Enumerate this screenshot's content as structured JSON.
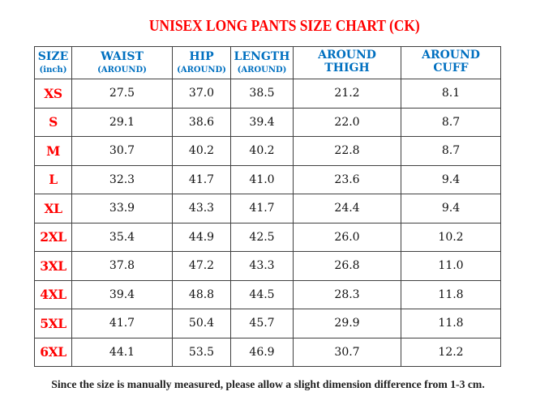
{
  "title": {
    "text": "UNISEX LONG PANTS SIZE CHART (CK)"
  },
  "footnote": {
    "text": "Since the size is manually measured, please allow a slight dimension difference from 1-3 cm."
  },
  "colors": {
    "title_red": "#ff0000",
    "header_blue": "#0070c0",
    "size_label_red": "#ff0000",
    "value_text": "#111111",
    "border": "#404040",
    "background": "#ffffff"
  },
  "table": {
    "columns": [
      {
        "label": "SIZE",
        "sublabel": "(inch)",
        "sub_small": true
      },
      {
        "label": "WAIST",
        "sublabel": "(AROUND)",
        "sub_small": true
      },
      {
        "label": "HIP",
        "sublabel": "(AROUND)",
        "sub_small": true
      },
      {
        "label": "LENGTH",
        "sublabel": "(AROUND)",
        "sub_small": true
      },
      {
        "label": "AROUND",
        "sublabel": "THIGH",
        "sub_small": false
      },
      {
        "label": "AROUND",
        "sublabel": "CUFF",
        "sub_small": false
      }
    ],
    "rows": [
      {
        "size": "XS",
        "values": [
          "27.5",
          "37.0",
          "38.5",
          "21.2",
          "8.1"
        ]
      },
      {
        "size": "S",
        "values": [
          "29.1",
          "38.6",
          "39.4",
          "22.0",
          "8.7"
        ]
      },
      {
        "size": "M",
        "values": [
          "30.7",
          "40.2",
          "40.2",
          "22.8",
          "8.7"
        ]
      },
      {
        "size": "L",
        "values": [
          "32.3",
          "41.7",
          "41.0",
          "23.6",
          "9.4"
        ]
      },
      {
        "size": "XL",
        "values": [
          "33.9",
          "43.3",
          "41.7",
          "24.4",
          "9.4"
        ]
      },
      {
        "size": "2XL",
        "values": [
          "35.4",
          "44.9",
          "42.5",
          "26.0",
          "10.2"
        ]
      },
      {
        "size": "3XL",
        "values": [
          "37.8",
          "47.2",
          "43.3",
          "26.8",
          "11.0"
        ]
      },
      {
        "size": "4XL",
        "values": [
          "39.4",
          "48.8",
          "44.5",
          "28.3",
          "11.8"
        ]
      },
      {
        "size": "5XL",
        "values": [
          "41.7",
          "50.4",
          "45.7",
          "29.9",
          "11.8"
        ]
      },
      {
        "size": "6XL",
        "values": [
          "44.1",
          "53.5",
          "46.9",
          "30.7",
          "12.2"
        ]
      }
    ]
  },
  "chart_data": {
    "type": "table",
    "title": "UNISEX LONG PANTS SIZE CHART (CK)",
    "unit": "inch",
    "columns": [
      "SIZE (inch)",
      "WAIST (AROUND)",
      "HIP (AROUND)",
      "LENGTH (AROUND)",
      "AROUND THIGH",
      "AROUND CUFF"
    ],
    "rows": [
      [
        "XS",
        27.5,
        37.0,
        38.5,
        21.2,
        8.1
      ],
      [
        "S",
        29.1,
        38.6,
        39.4,
        22.0,
        8.7
      ],
      [
        "M",
        30.7,
        40.2,
        40.2,
        22.8,
        8.7
      ],
      [
        "L",
        32.3,
        41.7,
        41.0,
        23.6,
        9.4
      ],
      [
        "XL",
        33.9,
        43.3,
        41.7,
        24.4,
        9.4
      ],
      [
        "2XL",
        35.4,
        44.9,
        42.5,
        26.0,
        10.2
      ],
      [
        "3XL",
        37.8,
        47.2,
        43.3,
        26.8,
        11.0
      ],
      [
        "4XL",
        39.4,
        48.8,
        44.5,
        28.3,
        11.8
      ],
      [
        "5XL",
        41.7,
        50.4,
        45.7,
        29.9,
        11.8
      ],
      [
        "6XL",
        44.1,
        53.5,
        46.9,
        30.7,
        12.2
      ]
    ],
    "footnote": "Since the size is manually measured, please allow a slight dimension difference from 1-3 cm."
  }
}
